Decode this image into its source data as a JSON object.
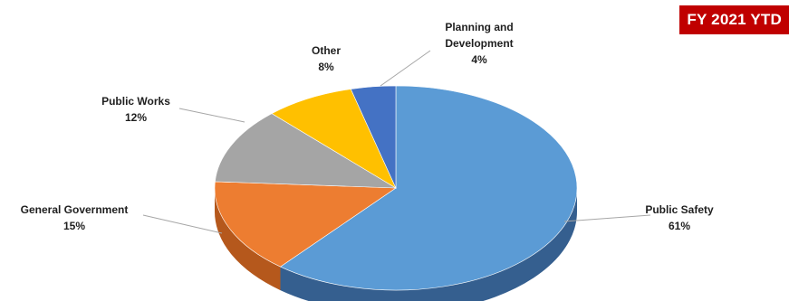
{
  "badge": {
    "text": "FY 2021 YTD",
    "color": "#c00000"
  },
  "chart_data": {
    "type": "pie",
    "style": "3d",
    "start": "top (12 o'clock), clockwise",
    "slices": [
      {
        "label": "Public Safety",
        "value": 61,
        "value_label": "61%",
        "color": "#5b9bd5",
        "side_color": "#355f8f"
      },
      {
        "label": "General Government",
        "value": 15,
        "value_label": "15%",
        "color": "#ed7d31",
        "side_color": "#b5581c"
      },
      {
        "label": "Public Works",
        "value": 12,
        "value_label": "12%",
        "color": "#a5a5a5",
        "side_color": "#7f7f7f"
      },
      {
        "label": "Other",
        "value": 8,
        "value_label": "8%",
        "color": "#ffc000",
        "side_color": "#c99700"
      },
      {
        "label": "Planning and Development",
        "value": 4,
        "value_label": "4%",
        "color": "#4472c4",
        "side_color": "#2f528f"
      }
    ]
  }
}
